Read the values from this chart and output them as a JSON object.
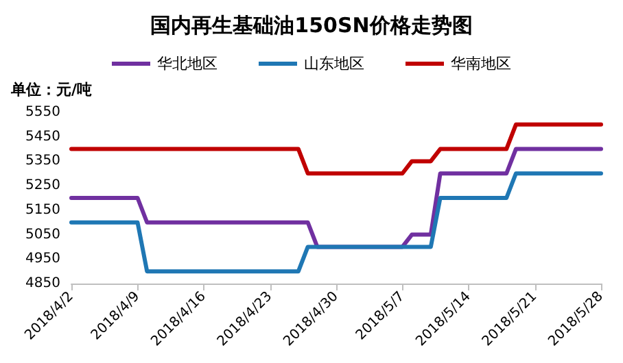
{
  "chart_data": {
    "type": "line",
    "title": "国内再生基础油150SN价格走势图",
    "annotations": [
      "单位：元/吨"
    ],
    "series": [
      {
        "name": "华北地区",
        "color": "#7030a0",
        "x": [
          "2018-04-02",
          "2018-04-09",
          "2018-04-10",
          "2018-04-27",
          "2018-04-28",
          "2018-05-07",
          "2018-05-08",
          "2018-05-10",
          "2018-05-11",
          "2018-05-18",
          "2018-05-19",
          "2018-05-28"
        ],
        "values": [
          5200,
          5200,
          5100,
          5100,
          5000,
          5000,
          5050,
          5050,
          5300,
          5300,
          5400,
          5400
        ]
      },
      {
        "name": "山东地区",
        "color": "#1f77b4",
        "x": [
          "2018-04-02",
          "2018-04-09",
          "2018-04-10",
          "2018-04-26",
          "2018-04-27",
          "2018-05-10",
          "2018-05-11",
          "2018-05-18",
          "2018-05-19",
          "2018-05-28"
        ],
        "values": [
          5100,
          5100,
          4900,
          4900,
          5000,
          5000,
          5200,
          5200,
          5300,
          5300
        ]
      },
      {
        "name": "华南地区",
        "color": "#c00000",
        "x": [
          "2018-04-02",
          "2018-04-26",
          "2018-04-27",
          "2018-05-07",
          "2018-05-08",
          "2018-05-10",
          "2018-05-11",
          "2018-05-18",
          "2018-05-19",
          "2018-05-28"
        ],
        "values": [
          5400,
          5400,
          5300,
          5300,
          5350,
          5350,
          5400,
          5400,
          5500,
          5500
        ]
      }
    ],
    "xlim": [
      "2018-04-02",
      "2018-05-28"
    ],
    "xticks": [
      {
        "value": "2018-04-02",
        "label": "2018/4/2"
      },
      {
        "value": "2018-04-09",
        "label": "2018/4/9"
      },
      {
        "value": "2018-04-16",
        "label": "2018/4/16"
      },
      {
        "value": "2018-04-23",
        "label": "2018/4/23"
      },
      {
        "value": "2018-04-30",
        "label": "2018/4/30"
      },
      {
        "value": "2018-05-07",
        "label": "2018/5/7"
      },
      {
        "value": "2018-05-14",
        "label": "2018/5/14"
      },
      {
        "value": "2018-05-21",
        "label": "2018/5/21"
      },
      {
        "value": "2018-05-28",
        "label": "2018/5/28"
      }
    ],
    "ylim": [
      4850,
      5550
    ],
    "yticks": [
      4850,
      4950,
      5050,
      5150,
      5250,
      5350,
      5450,
      5550
    ],
    "grid": false,
    "legend": "top",
    "marker": "none",
    "line_style": "solid"
  }
}
